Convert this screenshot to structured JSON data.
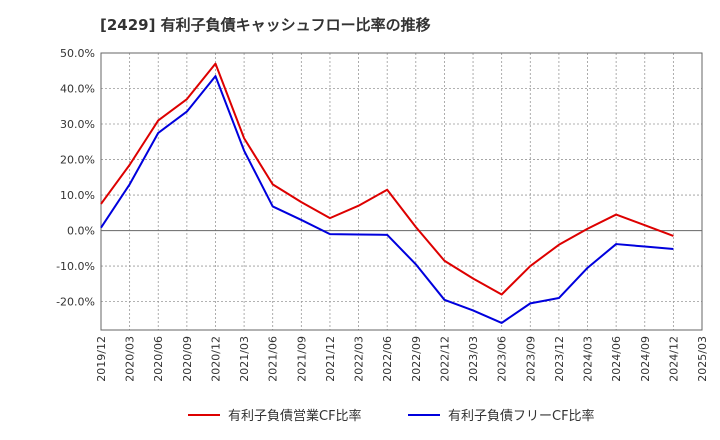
{
  "chart_data": {
    "type": "line",
    "title": "[2429]  有利子負債キャッシュフロー比率の推移",
    "xlabel": "",
    "ylabel": "",
    "x": [
      "2019/12",
      "2020/03",
      "2020/06",
      "2020/09",
      "2020/12",
      "2021/03",
      "2021/06",
      "2021/09",
      "2021/12",
      "2022/03",
      "2022/06",
      "2022/09",
      "2022/12",
      "2023/03",
      "2023/06",
      "2023/09",
      "2023/12",
      "2024/03",
      "2024/06",
      "2024/09",
      "2024/12"
    ],
    "x_ticks": [
      "2019/12",
      "2020/03",
      "2020/06",
      "2020/09",
      "2020/12",
      "2021/03",
      "2021/06",
      "2021/09",
      "2021/12",
      "2022/03",
      "2022/06",
      "2022/09",
      "2022/12",
      "2023/03",
      "2023/06",
      "2023/09",
      "2023/12",
      "2024/03",
      "2024/06",
      "2024/09",
      "2024/12",
      "2025/03"
    ],
    "y_ticks": [
      50,
      40,
      30,
      20,
      10,
      0,
      -10,
      -20
    ],
    "y_tick_labels": [
      "50.0%",
      "40.0%",
      "30.0%",
      "20.0%",
      "10.0%",
      "0.0%",
      "-10.0%",
      "-20.0%"
    ],
    "ylim": [
      -28,
      50
    ],
    "grid": true,
    "legend_position": "bottom",
    "series": [
      {
        "name": "有利子負債営業CF比率",
        "color": "#dd0000",
        "values": [
          7.5,
          18.5,
          31.0,
          37.0,
          47.0,
          26.0,
          13.0,
          8.0,
          3.5,
          7.0,
          11.5,
          1.0,
          -8.5,
          -13.5,
          -18.0,
          -10.0,
          -4.0,
          0.5,
          4.5,
          1.5,
          -1.5
        ]
      },
      {
        "name": "有利子負債フリーCF比率",
        "color": "#0000dd",
        "values": [
          0.8,
          13.0,
          27.5,
          33.5,
          43.5,
          22.5,
          6.8,
          3.0,
          -1.0,
          -1.1,
          -1.2,
          -9.5,
          -19.5,
          -22.5,
          -26.0,
          -20.5,
          -19.0,
          -10.5,
          -3.8,
          -4.5,
          -5.2
        ]
      }
    ]
  }
}
